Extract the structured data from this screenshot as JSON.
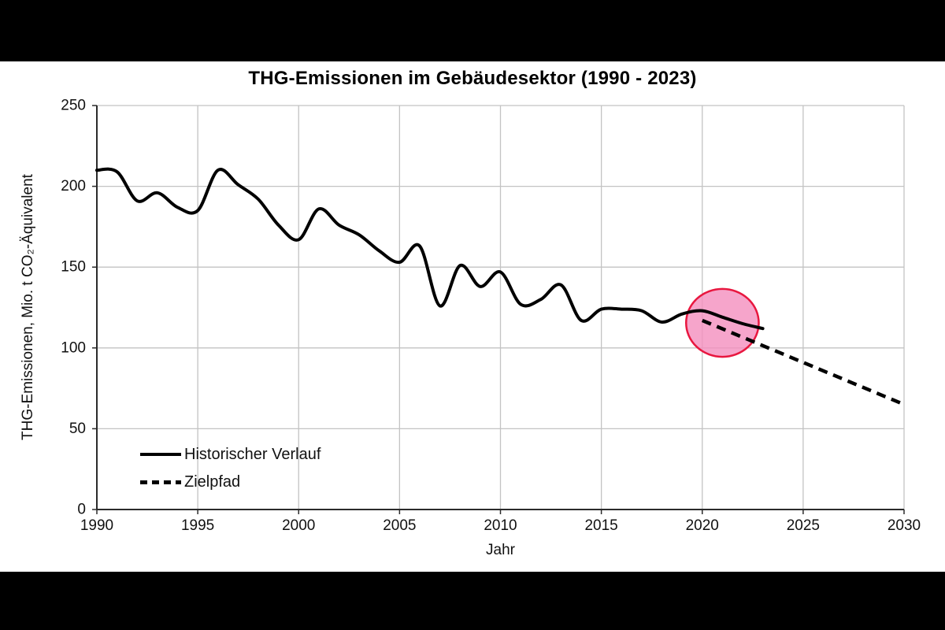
{
  "window": {
    "background_color": "#000000",
    "canvas_color": "#ffffff"
  },
  "chart_data": {
    "type": "line",
    "title": "THG-Emissionen im Gebäudesektor (1990 - 2023)",
    "xlabel": "Jahr",
    "ylabel": "THG-Emissionen, Mio. t CO₂-Äquivalent",
    "xlim": [
      1990,
      2030
    ],
    "ylim": [
      0,
      250
    ],
    "x_ticks": [
      1990,
      1995,
      2000,
      2005,
      2010,
      2015,
      2020,
      2025,
      2030
    ],
    "y_ticks": [
      0,
      50,
      100,
      150,
      200,
      250
    ],
    "grid": true,
    "legend_position": "inside-bottom-left",
    "series": [
      {
        "name": "Historischer Verlauf",
        "style": "solid",
        "color": "#000000",
        "x": [
          1990,
          1991,
          1992,
          1993,
          1994,
          1995,
          1996,
          1997,
          1998,
          1999,
          2000,
          2001,
          2002,
          2003,
          2004,
          2005,
          2006,
          2007,
          2008,
          2009,
          2010,
          2011,
          2012,
          2013,
          2014,
          2015,
          2016,
          2017,
          2018,
          2019,
          2020,
          2021,
          2022,
          2023
        ],
        "values": [
          210,
          209,
          191,
          196,
          187,
          185,
          210,
          201,
          192,
          176,
          167,
          186,
          176,
          170,
          160,
          153,
          163,
          126,
          151,
          138,
          147,
          127,
          130,
          139,
          117,
          124,
          124,
          123,
          116,
          121,
          123,
          119,
          115,
          112
        ]
      },
      {
        "name": "Zielpfad",
        "style": "dashed",
        "color": "#000000",
        "x": [
          2020,
          2030
        ],
        "values": [
          117,
          65
        ]
      }
    ],
    "annotation": {
      "shape": "ellipse",
      "center_year": 2021,
      "center_value": 115.5,
      "radius_years": 1.8,
      "radius_values": 21,
      "fill": "#F48FBE",
      "fill_opacity": 0.8,
      "stroke": "#E8173F",
      "stroke_width": 2.5
    }
  }
}
